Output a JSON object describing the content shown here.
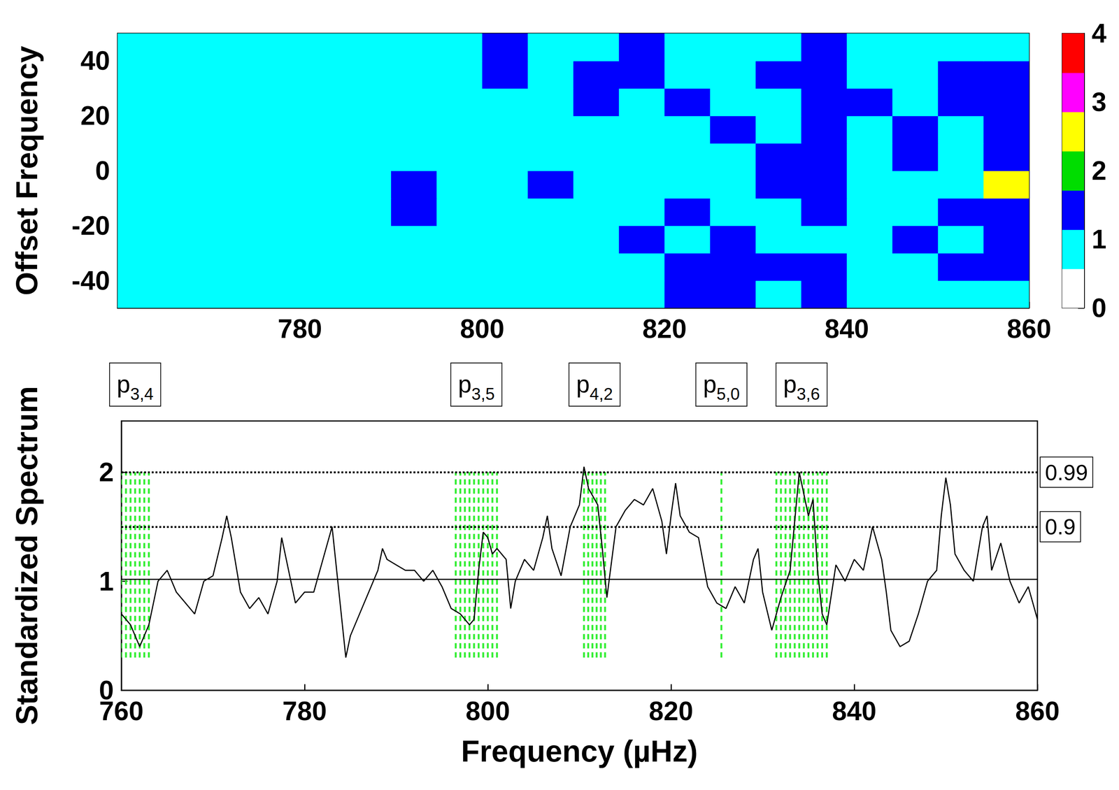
{
  "chart_data": [
    {
      "type": "heatmap",
      "y_label": "Offset Frequency",
      "xlim": [
        760,
        860
      ],
      "xticks": [
        780,
        800,
        820,
        840,
        860
      ],
      "ylim": [
        -50,
        50
      ],
      "yticks": [
        -40,
        -20,
        0,
        20,
        40
      ],
      "x_edges": [
        760,
        765,
        770,
        775,
        780,
        785,
        790,
        795,
        800,
        805,
        810,
        815,
        820,
        825,
        830,
        835,
        840,
        845,
        850,
        855,
        860
      ],
      "y_edges": [
        -50,
        -40,
        -30,
        -20,
        -10,
        0,
        10,
        20,
        30,
        40,
        50
      ],
      "cells": [
        [
          1.0,
          0.9,
          0.8,
          0.9,
          1.0,
          1.1,
          1.0,
          0.9,
          0.8,
          1.0,
          1.1,
          1.0,
          1.2,
          1.3,
          1.1,
          1.2,
          1.1,
          1.0,
          1.1,
          1.0
        ],
        [
          0.8,
          0.9,
          0.8,
          0.7,
          1.0,
          0.9,
          1.0,
          0.9,
          1.0,
          1.1,
          0.9,
          1.1,
          1.3,
          1.4,
          1.2,
          1.4,
          1.0,
          1.1,
          1.2,
          1.2
        ],
        [
          0.7,
          0.8,
          0.9,
          0.8,
          0.9,
          1.1,
          1.0,
          1.0,
          1.1,
          1.0,
          1.0,
          1.2,
          1.1,
          1.3,
          1.1,
          1.0,
          1.0,
          1.2,
          1.1,
          1.3
        ],
        [
          0.8,
          0.7,
          0.8,
          0.9,
          0.8,
          1.0,
          1.2,
          1.0,
          1.0,
          0.9,
          1.1,
          1.0,
          1.2,
          1.0,
          1.1,
          1.5,
          1.1,
          1.0,
          1.2,
          1.6
        ],
        [
          0.9,
          0.8,
          0.7,
          0.8,
          0.9,
          1.0,
          1.7,
          1.1,
          1.0,
          1.2,
          1.0,
          0.9,
          1.0,
          1.1,
          1.2,
          1.4,
          1.1,
          1.0,
          1.1,
          2.3
        ],
        [
          0.8,
          0.7,
          0.8,
          0.9,
          1.0,
          1.1,
          1.0,
          0.9,
          1.0,
          1.1,
          1.0,
          0.9,
          1.1,
          1.0,
          1.3,
          1.2,
          1.1,
          1.5,
          1.0,
          1.2
        ],
        [
          0.7,
          0.6,
          0.7,
          0.8,
          0.8,
          1.0,
          0.9,
          1.1,
          0.9,
          1.0,
          1.0,
          1.0,
          0.9,
          1.2,
          1.1,
          1.3,
          1.0,
          1.2,
          1.1,
          1.5
        ],
        [
          0.8,
          0.7,
          0.6,
          0.7,
          0.9,
          0.8,
          0.9,
          0.8,
          1.0,
          0.9,
          1.3,
          1.1,
          1.2,
          0.9,
          1.0,
          1.4,
          1.2,
          1.1,
          1.3,
          1.6
        ],
        [
          0.7,
          0.8,
          0.7,
          0.6,
          0.8,
          0.9,
          0.8,
          1.0,
          1.4,
          1.0,
          1.2,
          1.6,
          1.0,
          1.1,
          1.2,
          1.4,
          1.1,
          1.0,
          1.5,
          1.2
        ],
        [
          0.6,
          0.7,
          0.8,
          0.7,
          0.6,
          0.7,
          0.8,
          0.9,
          1.3,
          0.9,
          1.1,
          1.3,
          0.9,
          0.8,
          1.0,
          1.2,
          1.0,
          1.1,
          1.0,
          1.1
        ]
      ],
      "colorbar": {
        "range": [
          0,
          4
        ],
        "ticks": [
          0,
          1,
          2,
          3,
          4
        ],
        "colors": [
          "#ffffff",
          "#00ffff",
          "#0000ff",
          "#00dd00",
          "#ffff00",
          "#ff00ff",
          "#ff0000"
        ]
      }
    },
    {
      "type": "line",
      "x_label": "Frequency (µHz)",
      "y_label": "Standardized Spectrum",
      "xlim": [
        760,
        860
      ],
      "xticks": [
        760,
        780,
        800,
        820,
        840,
        860
      ],
      "ylim": [
        0,
        2.47
      ],
      "yticks": [
        0,
        1,
        2
      ],
      "color": "#000000",
      "x": [
        760,
        761,
        762,
        763,
        764,
        765,
        766,
        767,
        768,
        769,
        770,
        771,
        771.5,
        772,
        773,
        774,
        775,
        776,
        777,
        777.5,
        778,
        779,
        780,
        781,
        782,
        783,
        784,
        784.5,
        785,
        786,
        787,
        788,
        788.5,
        789,
        790,
        791,
        792,
        793,
        794,
        795,
        796,
        797,
        798,
        798.5,
        799,
        799.5,
        800,
        800.5,
        801,
        802,
        802.5,
        803,
        804,
        805,
        806,
        806.5,
        807,
        808,
        809,
        810,
        810.5,
        811,
        812,
        812.5,
        813,
        814,
        815,
        816,
        817,
        818,
        819,
        819.5,
        820,
        820.5,
        821,
        822,
        823,
        824,
        825,
        826,
        827,
        828,
        829,
        829.5,
        830,
        831,
        832,
        833,
        834,
        835,
        835.5,
        836,
        836.5,
        837,
        838,
        839,
        840,
        841,
        842,
        843,
        843.5,
        844,
        845,
        846,
        847,
        848,
        849,
        849.5,
        850,
        850.5,
        851,
        852,
        853,
        854,
        854.5,
        855,
        856,
        857,
        858,
        859,
        860
      ],
      "values": [
        0.7,
        0.6,
        0.4,
        0.6,
        1.0,
        1.1,
        0.9,
        0.8,
        0.7,
        1.0,
        1.05,
        1.4,
        1.6,
        1.4,
        0.9,
        0.75,
        0.85,
        0.7,
        1.0,
        1.4,
        1.2,
        0.8,
        0.9,
        0.9,
        1.2,
        1.5,
        0.7,
        0.3,
        0.5,
        0.7,
        0.9,
        1.1,
        1.3,
        1.2,
        1.15,
        1.1,
        1.1,
        1.0,
        1.1,
        0.95,
        0.75,
        0.7,
        0.6,
        0.65,
        1.1,
        1.45,
        1.4,
        1.25,
        1.3,
        1.2,
        0.75,
        1.0,
        1.2,
        1.1,
        1.4,
        1.6,
        1.3,
        1.05,
        1.5,
        1.7,
        2.05,
        1.85,
        1.7,
        1.3,
        0.85,
        1.5,
        1.65,
        1.75,
        1.7,
        1.85,
        1.55,
        1.25,
        1.6,
        1.9,
        1.6,
        1.45,
        1.4,
        0.95,
        0.8,
        0.75,
        0.95,
        0.8,
        1.2,
        1.3,
        0.9,
        0.55,
        0.85,
        1.1,
        2.0,
        1.6,
        1.75,
        1.1,
        0.7,
        0.6,
        1.15,
        1.0,
        1.2,
        1.1,
        1.5,
        1.2,
        0.9,
        0.55,
        0.4,
        0.45,
        0.7,
        1.0,
        1.1,
        1.6,
        1.95,
        1.7,
        1.25,
        1.1,
        1.0,
        1.5,
        1.6,
        1.1,
        1.35,
        1.0,
        0.8,
        0.95,
        0.65
      ],
      "reference_lines": [
        {
          "y": 2.0,
          "label": "0.99",
          "line_style": "dotted"
        },
        {
          "y": 1.5,
          "label": "0.9",
          "line_style": "dotted"
        },
        {
          "y": 1.02,
          "line_style": "solid"
        }
      ],
      "band_ylim": [
        0.3,
        2.0
      ],
      "bands": [
        {
          "label": "p",
          "subscript": "3,4",
          "range": [
            760,
            763
          ],
          "color": "#33ee33"
        },
        {
          "label": "p",
          "subscript": "3,5",
          "range": [
            796.5,
            801
          ],
          "color": "#33ee33"
        },
        {
          "label": "p",
          "subscript": "4,2",
          "range": [
            810.5,
            812.8
          ],
          "color": "#33ee33"
        },
        {
          "label": "p",
          "subscript": "5,0",
          "range": [
            825.5,
            825.5
          ],
          "color": "#33ee33"
        },
        {
          "label": "p",
          "subscript": "3,6",
          "range": [
            831.5,
            837
          ],
          "color": "#33ee33"
        }
      ]
    }
  ]
}
